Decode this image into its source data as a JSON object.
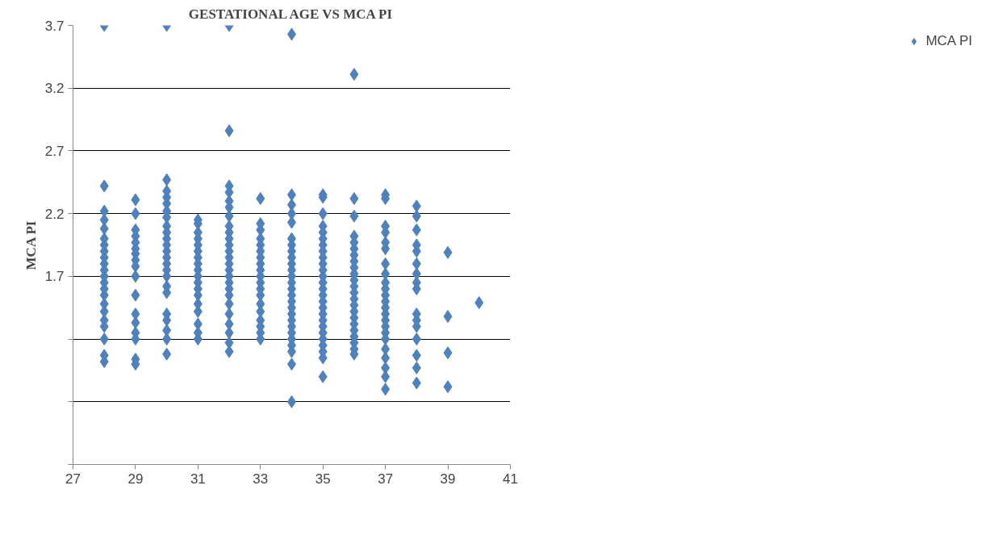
{
  "chart_data": {
    "type": "scatter",
    "title": "GESTATIONAL AGE VS MCA PI",
    "ylabel": "MCA PI",
    "xlim": [
      27,
      41
    ],
    "xticks": [
      27,
      29,
      31,
      33,
      35,
      37,
      39,
      41
    ],
    "ylim": [
      0.2,
      3.7
    ],
    "yticks": [
      {
        "value": 0.2,
        "label": null
      },
      {
        "value": 0.7,
        "label": null
      },
      {
        "value": 1.2,
        "label": null
      },
      1.7,
      2.2,
      2.7,
      3.2,
      3.7
    ],
    "grid": "y",
    "legend": "right",
    "marker": "diamond",
    "series": [
      {
        "name": "MCA PI",
        "color": "#4f81bd",
        "x": [
          28,
          28,
          28,
          28,
          28,
          28,
          28,
          28,
          28,
          28,
          28,
          28,
          28,
          28,
          28,
          28,
          28,
          28,
          28,
          28,
          28,
          28,
          29,
          29,
          29,
          29,
          29,
          29,
          29,
          29,
          29,
          29,
          29,
          29,
          29,
          29,
          29,
          29,
          29,
          30,
          30,
          30,
          30,
          30,
          30,
          30,
          30,
          30,
          30,
          30,
          30,
          30,
          30,
          30,
          30,
          30,
          30,
          30,
          30,
          30,
          30,
          30,
          31,
          31,
          31,
          31,
          31,
          31,
          31,
          31,
          31,
          31,
          31,
          31,
          31,
          31,
          31,
          31,
          31,
          31,
          32,
          32,
          32,
          32,
          32,
          32,
          32,
          32,
          32,
          32,
          32,
          32,
          32,
          32,
          32,
          32,
          32,
          32,
          32,
          32,
          32,
          32,
          32,
          32,
          32,
          33,
          33,
          33,
          33,
          33,
          33,
          33,
          33,
          33,
          33,
          33,
          33,
          33,
          33,
          33,
          33,
          33,
          33,
          33,
          34,
          34,
          34,
          34,
          34,
          34,
          34,
          34,
          34,
          34,
          34,
          34,
          34,
          34,
          34,
          34,
          34,
          34,
          34,
          34,
          34,
          34,
          34,
          34,
          34,
          34,
          35,
          35,
          35,
          35,
          35,
          35,
          35,
          35,
          35,
          35,
          35,
          35,
          35,
          35,
          35,
          35,
          35,
          35,
          35,
          35,
          35,
          35,
          35,
          35,
          35,
          35,
          36,
          36,
          36,
          36,
          36,
          36,
          36,
          36,
          36,
          36,
          36,
          36,
          36,
          36,
          36,
          36,
          36,
          36,
          36,
          36,
          36,
          36,
          36,
          37,
          37,
          37,
          37,
          37,
          37,
          37,
          37,
          37,
          37,
          37,
          37,
          37,
          37,
          37,
          37,
          37,
          37,
          37,
          37,
          37,
          37,
          37,
          38,
          38,
          38,
          38,
          38,
          38,
          38,
          38,
          38,
          38,
          38,
          38,
          38,
          38,
          38,
          38,
          39,
          39,
          39,
          39,
          40
        ],
        "values": [
          3.7,
          2.42,
          2.22,
          2.15,
          2.08,
          2.0,
          1.95,
          1.9,
          1.85,
          1.8,
          1.75,
          1.7,
          1.65,
          1.6,
          1.55,
          1.48,
          1.42,
          1.35,
          1.3,
          1.2,
          1.07,
          1.02,
          2.31,
          2.2,
          2.07,
          2.02,
          1.97,
          1.92,
          1.88,
          1.83,
          1.78,
          1.7,
          1.55,
          1.4,
          1.33,
          1.25,
          1.2,
          1.04,
          1.0,
          3.7,
          2.47,
          2.38,
          2.33,
          2.28,
          2.22,
          2.17,
          2.1,
          2.05,
          2.0,
          1.95,
          1.9,
          1.85,
          1.8,
          1.75,
          1.7,
          1.62,
          1.57,
          1.4,
          1.35,
          1.27,
          1.2,
          1.08,
          2.15,
          2.12,
          2.05,
          2.0,
          1.95,
          1.9,
          1.85,
          1.8,
          1.75,
          1.7,
          1.65,
          1.6,
          1.55,
          1.48,
          1.42,
          1.32,
          1.25,
          1.2,
          3.7,
          2.86,
          2.42,
          2.37,
          2.3,
          2.25,
          2.18,
          2.1,
          2.05,
          2.0,
          1.95,
          1.9,
          1.85,
          1.8,
          1.75,
          1.7,
          1.65,
          1.6,
          1.55,
          1.48,
          1.4,
          1.32,
          1.25,
          1.17,
          1.1,
          2.32,
          2.12,
          2.07,
          2.0,
          1.95,
          1.9,
          1.85,
          1.8,
          1.75,
          1.7,
          1.65,
          1.6,
          1.55,
          1.48,
          1.42,
          1.35,
          1.3,
          1.25,
          1.2,
          3.63,
          2.35,
          2.27,
          2.2,
          2.13,
          2.0,
          1.95,
          1.9,
          1.85,
          1.8,
          1.75,
          1.7,
          1.65,
          1.6,
          1.55,
          1.5,
          1.45,
          1.4,
          1.35,
          1.3,
          1.25,
          1.2,
          1.15,
          1.1,
          1.0,
          0.7,
          2.35,
          2.33,
          2.2,
          2.1,
          2.05,
          2.0,
          1.95,
          1.9,
          1.85,
          1.8,
          1.75,
          1.7,
          1.65,
          1.6,
          1.55,
          1.5,
          1.45,
          1.4,
          1.35,
          1.3,
          1.25,
          1.2,
          1.15,
          1.1,
          1.05,
          0.9,
          3.31,
          2.32,
          2.18,
          2.02,
          1.97,
          1.92,
          1.87,
          1.82,
          1.77,
          1.72,
          1.67,
          1.62,
          1.57,
          1.52,
          1.47,
          1.42,
          1.37,
          1.32,
          1.27,
          1.22,
          1.17,
          1.12,
          1.08,
          2.35,
          2.32,
          2.1,
          2.05,
          1.97,
          1.92,
          1.8,
          1.72,
          1.65,
          1.6,
          1.55,
          1.5,
          1.45,
          1.4,
          1.35,
          1.3,
          1.25,
          1.2,
          1.12,
          1.05,
          0.97,
          0.9,
          0.8,
          2.26,
          2.18,
          2.07,
          1.95,
          1.9,
          1.8,
          1.72,
          1.65,
          1.6,
          1.4,
          1.35,
          1.3,
          1.2,
          1.07,
          0.97,
          0.85,
          1.89,
          1.38,
          1.09,
          0.82,
          1.49
        ]
      }
    ]
  }
}
